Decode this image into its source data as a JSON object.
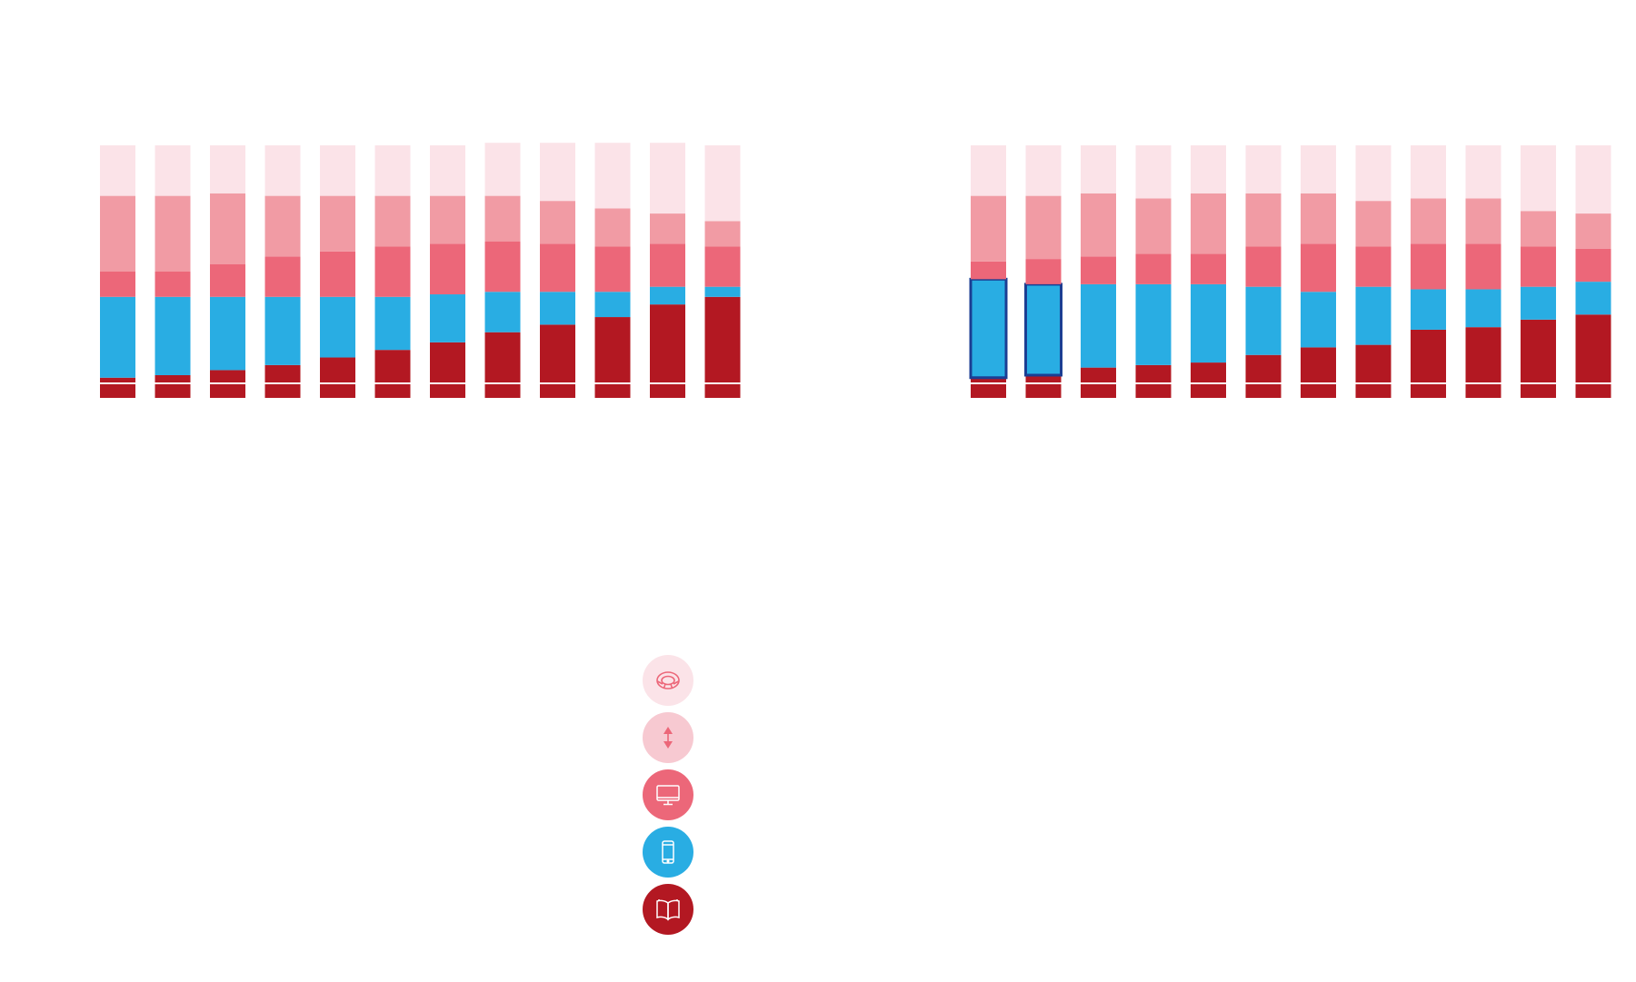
{
  "colors": {
    "print": "#b31822",
    "mobile": "#29ade3",
    "computer": "#ec6779",
    "other": "#f19ba4",
    "car": "#fbe3e8",
    "divider": "#ffffff",
    "highlight": "#1b3e93"
  },
  "legend": {
    "items": [
      {
        "key": "car",
        "icon": "steering-wheel-icon",
        "color": "#fbe3e8"
      },
      {
        "key": "other",
        "icon": "up-down-arrow-icon",
        "color": "#f7c9d1"
      },
      {
        "key": "computer",
        "icon": "monitor-icon",
        "color": "#ec6779"
      },
      {
        "key": "mobile",
        "icon": "smartphone-icon",
        "color": "#29ade3"
      },
      {
        "key": "print",
        "icon": "open-book-icon",
        "color": "#b31822"
      }
    ]
  },
  "chart_data": [
    {
      "type": "bar",
      "stacked": true,
      "title": "",
      "xlabel": "",
      "ylabel": "",
      "ylim": [
        0,
        100
      ],
      "categories": [
        "",
        "",
        "",
        "",
        "",
        "",
        "",
        "",
        "",
        "",
        "",
        ""
      ],
      "series": [
        {
          "key": "print",
          "values": [
            8,
            9,
            11,
            13,
            16,
            19,
            22,
            26,
            29,
            32,
            37,
            40
          ]
        },
        {
          "key": "mobile",
          "values": [
            32,
            31,
            29,
            27,
            24,
            21,
            19,
            16,
            13,
            10,
            7,
            4
          ]
        },
        {
          "key": "computer",
          "values": [
            10,
            10,
            13,
            16,
            18,
            20,
            20,
            20,
            19,
            18,
            17,
            16
          ]
        },
        {
          "key": "other",
          "values": [
            30,
            30,
            28,
            24,
            22,
            20,
            19,
            18,
            17,
            15,
            12,
            10
          ]
        },
        {
          "key": "car",
          "values": [
            20,
            20,
            19,
            20,
            20,
            20,
            20,
            21,
            23,
            26,
            28,
            30
          ]
        }
      ]
    },
    {
      "type": "bar",
      "stacked": true,
      "title": "",
      "xlabel": "",
      "ylabel": "",
      "ylim": [
        0,
        100
      ],
      "categories": [
        "",
        "",
        "",
        "",
        "",
        "",
        "",
        "",
        "",
        "",
        "",
        ""
      ],
      "highlighted_bars": [
        0,
        1
      ],
      "series": [
        {
          "key": "print",
          "values": [
            8,
            9,
            12,
            13,
            14,
            17,
            20,
            21,
            27,
            28,
            31,
            33
          ]
        },
        {
          "key": "mobile",
          "values": [
            39,
            36,
            33,
            32,
            31,
            27,
            22,
            23,
            16,
            15,
            13,
            13
          ]
        },
        {
          "key": "computer",
          "values": [
            7,
            10,
            11,
            12,
            12,
            16,
            19,
            16,
            18,
            18,
            16,
            13
          ]
        },
        {
          "key": "other",
          "values": [
            26,
            25,
            25,
            22,
            24,
            21,
            20,
            18,
            18,
            18,
            14,
            14
          ]
        },
        {
          "key": "car",
          "values": [
            20,
            20,
            19,
            21,
            19,
            19,
            19,
            22,
            21,
            21,
            26,
            27
          ]
        }
      ]
    }
  ]
}
